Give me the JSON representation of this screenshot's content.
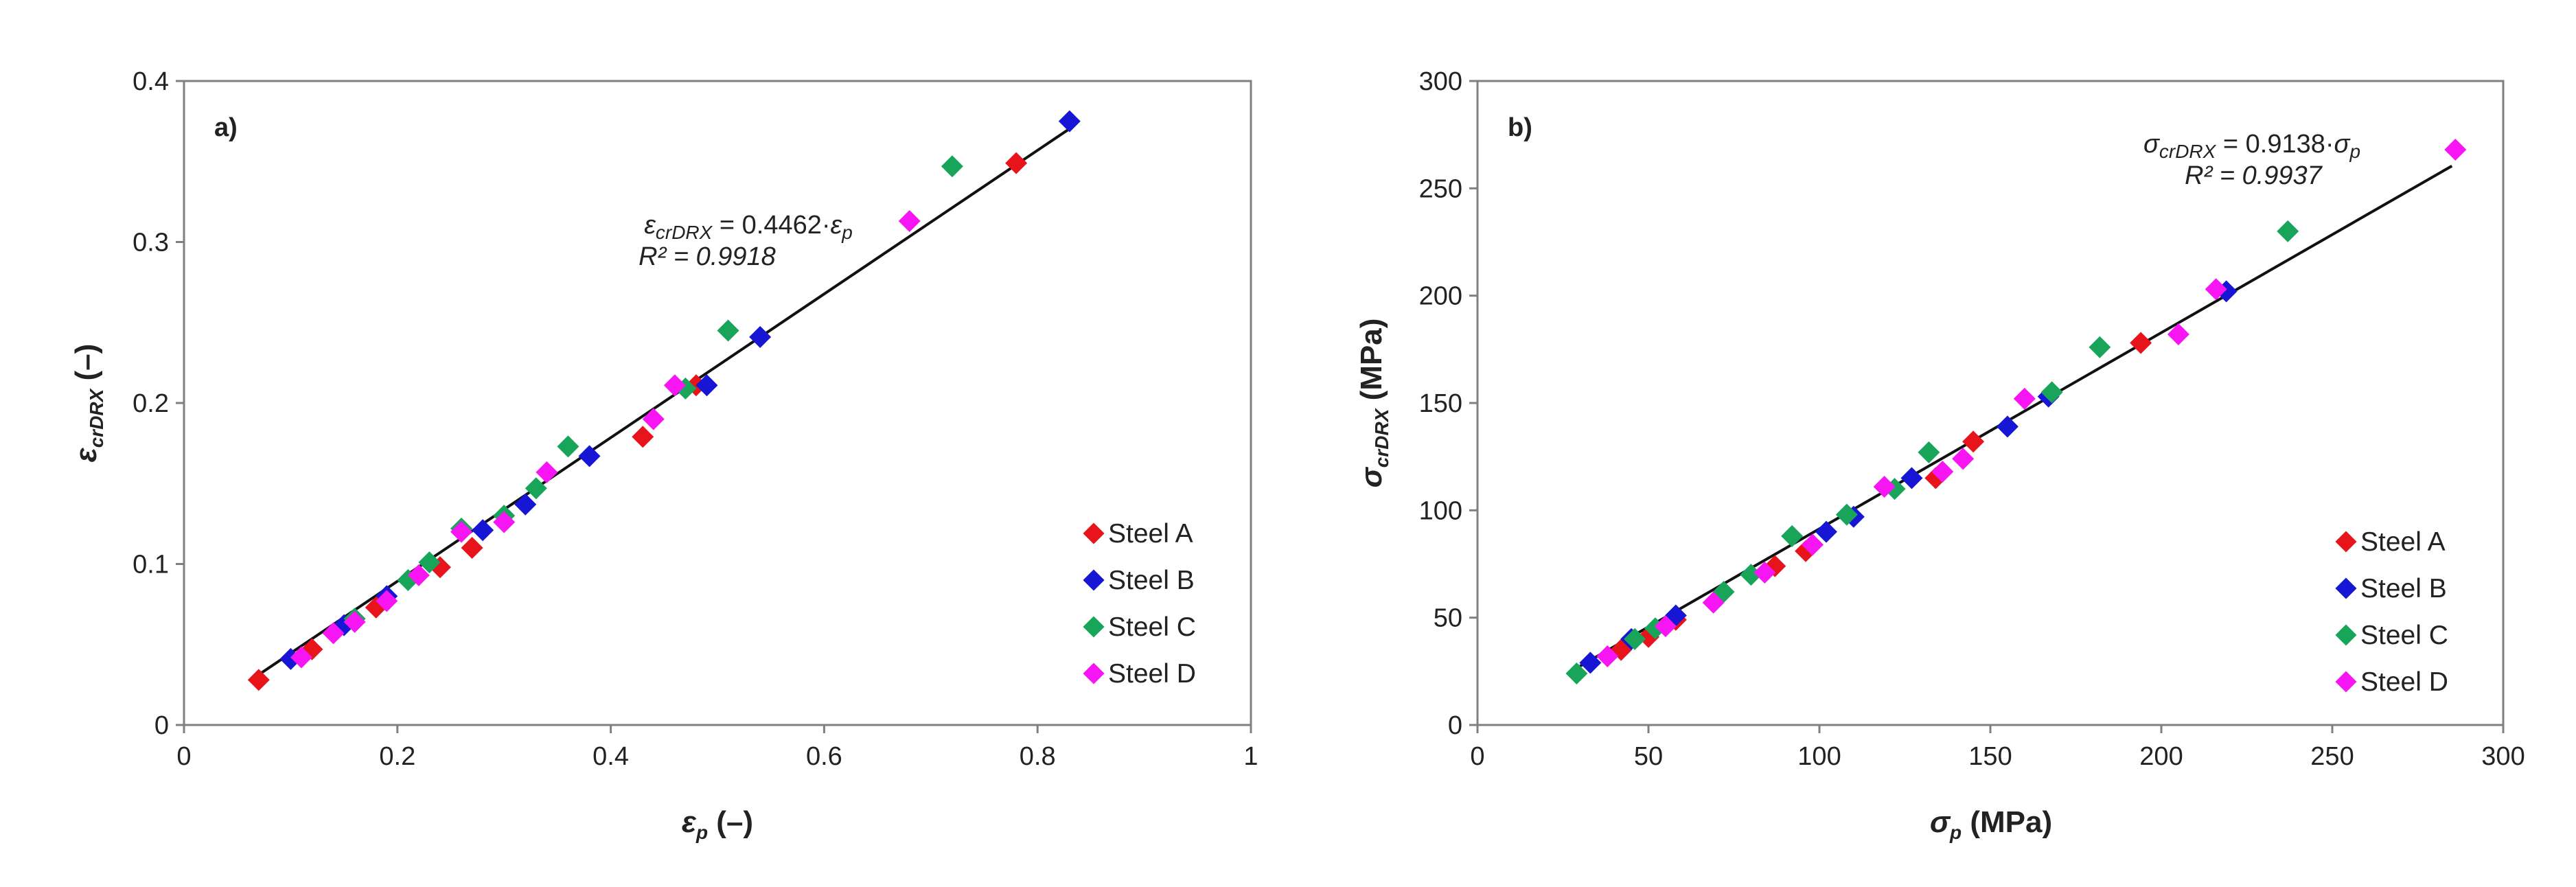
{
  "chart_data": [
    {
      "type": "scatter",
      "panel_label": "a)",
      "xlabel": {
        "symbol": "ε",
        "sub": "p",
        "unit": " (–)"
      },
      "ylabel": {
        "symbol": "ε",
        "sub": "crDRX",
        "unit": " (–)"
      },
      "xlim": [
        0,
        1
      ],
      "ylim": [
        0,
        0.4
      ],
      "x_ticks": [
        "0",
        "0.2",
        "0.4",
        "0.6",
        "0.8",
        "1"
      ],
      "y_ticks": [
        "0",
        "0.1",
        "0.2",
        "0.3",
        "0.4"
      ],
      "grid": false,
      "legend_position": "bottom-right",
      "fit_line": {
        "slope": 0.4462,
        "x_range": [
          0.07,
          0.83
        ]
      },
      "annotation": {
        "lhs_symbol": "ε",
        "lhs_sub": "crDRX",
        "op": " = 0.4462·",
        "rhs_symbol": "ε",
        "rhs_sub": "p",
        "r2": "R² = 0.9918"
      },
      "series": [
        {
          "name": "Steel A",
          "color": "#e8141c",
          "points": [
            [
              0.07,
              0.028
            ],
            [
              0.12,
              0.047
            ],
            [
              0.18,
              0.073
            ],
            [
              0.24,
              0.098
            ],
            [
              0.27,
              0.11
            ],
            [
              0.43,
              0.179
            ],
            [
              0.48,
              0.211
            ],
            [
              0.78,
              0.349
            ]
          ]
        },
        {
          "name": "Steel B",
          "color": "#1616d4",
          "points": [
            [
              0.1,
              0.041
            ],
            [
              0.15,
              0.062
            ],
            [
              0.19,
              0.08
            ],
            [
              0.28,
              0.121
            ],
            [
              0.32,
              0.137
            ],
            [
              0.38,
              0.167
            ],
            [
              0.49,
              0.211
            ],
            [
              0.54,
              0.241
            ],
            [
              0.83,
              0.375
            ]
          ]
        },
        {
          "name": "Steel C",
          "color": "#18a55a",
          "points": [
            [
              0.16,
              0.066
            ],
            [
              0.21,
              0.09
            ],
            [
              0.23,
              0.101
            ],
            [
              0.26,
              0.122
            ],
            [
              0.3,
              0.13
            ],
            [
              0.33,
              0.147
            ],
            [
              0.36,
              0.173
            ],
            [
              0.47,
              0.209
            ],
            [
              0.51,
              0.245
            ],
            [
              0.72,
              0.347
            ]
          ]
        },
        {
          "name": "Steel D",
          "color": "#f716f3",
          "points": [
            [
              0.11,
              0.042
            ],
            [
              0.14,
              0.057
            ],
            [
              0.16,
              0.064
            ],
            [
              0.19,
              0.077
            ],
            [
              0.22,
              0.093
            ],
            [
              0.26,
              0.12
            ],
            [
              0.3,
              0.126
            ],
            [
              0.34,
              0.157
            ],
            [
              0.44,
              0.19
            ],
            [
              0.46,
              0.211
            ],
            [
              0.68,
              0.313
            ]
          ]
        }
      ]
    },
    {
      "type": "scatter",
      "panel_label": "b)",
      "xlabel": {
        "symbol": "σ",
        "sub": "p",
        "unit": " (MPa)"
      },
      "ylabel": {
        "symbol": "σ",
        "sub": "crDRX",
        "unit": " (MPa)"
      },
      "xlim": [
        0,
        300
      ],
      "ylim": [
        0,
        300
      ],
      "x_ticks": [
        "0",
        "50",
        "100",
        "150",
        "200",
        "250",
        "300"
      ],
      "y_ticks": [
        "0",
        "50",
        "100",
        "150",
        "200",
        "250",
        "300"
      ],
      "grid": false,
      "legend_position": "bottom-right",
      "fit_line": {
        "slope": 0.9138,
        "x_range": [
          30,
          285
        ]
      },
      "annotation": {
        "lhs_symbol": "σ",
        "lhs_sub": "crDRX",
        "op": " = 0.9138·",
        "rhs_symbol": "σ",
        "rhs_sub": "p",
        "r2": "R² = 0.9937"
      },
      "series": [
        {
          "name": "Steel A",
          "color": "#e8141c",
          "points": [
            [
              42,
              35
            ],
            [
              50,
              41
            ],
            [
              58,
              49
            ],
            [
              87,
              74
            ],
            [
              96,
              81
            ],
            [
              134,
              115
            ],
            [
              145,
              132
            ],
            [
              194,
              178
            ]
          ]
        },
        {
          "name": "Steel B",
          "color": "#1616d4",
          "points": [
            [
              33,
              29
            ],
            [
              45,
              40
            ],
            [
              58,
              51
            ],
            [
              102,
              90
            ],
            [
              110,
              97
            ],
            [
              127,
              115
            ],
            [
              155,
              139
            ],
            [
              167,
              153
            ],
            [
              219,
              202
            ]
          ]
        },
        {
          "name": "Steel C",
          "color": "#18a55a",
          "points": [
            [
              29,
              24
            ],
            [
              46,
              40
            ],
            [
              52,
              45
            ],
            [
              72,
              62
            ],
            [
              80,
              70
            ],
            [
              92,
              88
            ],
            [
              108,
              98
            ],
            [
              122,
              110
            ],
            [
              132,
              127
            ],
            [
              168,
              155
            ],
            [
              182,
              176
            ],
            [
              237,
              230
            ]
          ]
        },
        {
          "name": "Steel D",
          "color": "#f716f3",
          "points": [
            [
              38,
              32
            ],
            [
              55,
              46
            ],
            [
              69,
              57
            ],
            [
              84,
              71
            ],
            [
              98,
              84
            ],
            [
              119,
              111
            ],
            [
              136,
              118
            ],
            [
              142,
              124
            ],
            [
              160,
              152
            ],
            [
              205,
              182
            ],
            [
              216,
              203
            ],
            [
              286,
              268
            ]
          ]
        }
      ]
    }
  ]
}
